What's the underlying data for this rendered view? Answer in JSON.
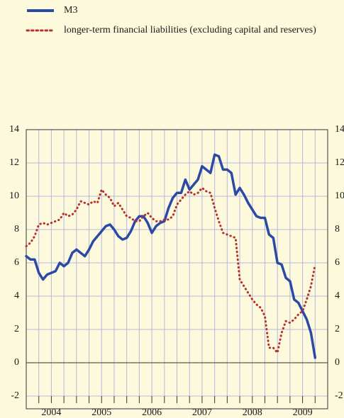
{
  "chart_data": {
    "type": "line",
    "x": [
      2004.0,
      2004.083,
      2004.167,
      2004.25,
      2004.333,
      2004.417,
      2004.5,
      2004.583,
      2004.667,
      2004.75,
      2004.833,
      2004.917,
      2005.0,
      2005.083,
      2005.167,
      2005.25,
      2005.333,
      2005.417,
      2005.5,
      2005.583,
      2005.667,
      2005.75,
      2005.833,
      2005.917,
      2006.0,
      2006.083,
      2006.167,
      2006.25,
      2006.333,
      2006.417,
      2006.5,
      2006.583,
      2006.667,
      2006.75,
      2006.833,
      2006.917,
      2007.0,
      2007.083,
      2007.167,
      2007.25,
      2007.333,
      2007.417,
      2007.5,
      2007.583,
      2007.667,
      2007.75,
      2007.833,
      2007.917,
      2008.0,
      2008.083,
      2008.167,
      2008.25,
      2008.333,
      2008.417,
      2008.5,
      2008.583,
      2008.667,
      2008.75,
      2008.833,
      2008.917,
      2009.0,
      2009.083,
      2009.167,
      2009.25,
      2009.333,
      2009.417,
      2009.5,
      2009.583,
      2009.667,
      2009.75
    ],
    "series": [
      {
        "name": "M3",
        "color": "#2b4aa6",
        "style": "solid",
        "values": [
          6.4,
          6.2,
          6.2,
          5.4,
          5.0,
          5.3,
          5.4,
          5.5,
          6.0,
          5.8,
          6.0,
          6.6,
          6.8,
          6.6,
          6.4,
          6.8,
          7.3,
          7.6,
          7.9,
          8.2,
          8.3,
          8.0,
          7.6,
          7.4,
          7.5,
          7.9,
          8.5,
          8.8,
          8.8,
          8.4,
          7.8,
          8.2,
          8.4,
          8.5,
          9.3,
          9.9,
          10.2,
          10.2,
          11.0,
          10.4,
          10.7,
          11.0,
          11.8,
          11.6,
          11.4,
          12.5,
          12.4,
          11.6,
          11.6,
          11.4,
          10.1,
          10.5,
          10.1,
          9.6,
          9.2,
          8.8,
          8.7,
          8.7,
          7.7,
          7.5,
          6.0,
          5.9,
          5.1,
          4.9,
          3.8,
          3.6,
          3.1,
          2.6,
          1.8,
          0.3
        ]
      },
      {
        "name": "longer-term financial liabilities (excluding capital and reserves)",
        "color": "#b5332e",
        "style": "dotted",
        "values": [
          7.0,
          7.2,
          7.6,
          8.3,
          8.4,
          8.3,
          8.4,
          8.5,
          8.6,
          9.0,
          8.8,
          8.9,
          9.2,
          9.7,
          9.6,
          9.5,
          9.7,
          9.6,
          10.4,
          10.1,
          9.9,
          9.4,
          9.6,
          9.2,
          8.8,
          8.7,
          8.5,
          8.5,
          8.8,
          9.0,
          8.7,
          8.5,
          8.5,
          8.6,
          8.6,
          8.8,
          9.5,
          9.8,
          10.1,
          10.3,
          10.1,
          10.2,
          10.5,
          10.3,
          10.2,
          9.3,
          8.5,
          7.8,
          7.7,
          7.6,
          7.5,
          5.0,
          4.6,
          4.2,
          3.8,
          3.5,
          3.3,
          2.8,
          0.9,
          0.9,
          0.6,
          1.8,
          2.5,
          2.4,
          2.6,
          2.9,
          3.1,
          3.8,
          4.6,
          5.9
        ]
      }
    ],
    "xlim": [
      2004,
      2010
    ],
    "xticks": [
      {
        "value": 2004.5,
        "label": "2004"
      },
      {
        "value": 2005.5,
        "label": "2005"
      },
      {
        "value": 2006.5,
        "label": "2006"
      },
      {
        "value": 2007.5,
        "label": "2007"
      },
      {
        "value": 2008.5,
        "label": "2008"
      },
      {
        "value": 2009.5,
        "label": "2009"
      }
    ],
    "x_minor_ticks": [
      2004.0,
      2004.25,
      2004.5,
      2004.75,
      2005.0,
      2005.25,
      2005.5,
      2005.75,
      2006.0,
      2006.25,
      2006.5,
      2006.75,
      2007.0,
      2007.25,
      2007.5,
      2007.75,
      2008.0,
      2008.25,
      2008.5,
      2008.75,
      2009.0,
      2009.25,
      2009.5,
      2009.75
    ],
    "ylim": [
      -2,
      14
    ],
    "yticks": [
      -2,
      0,
      2,
      4,
      6,
      8,
      10,
      12,
      14
    ],
    "grid": true,
    "right_axis_labels": true,
    "legend": "top-left"
  }
}
